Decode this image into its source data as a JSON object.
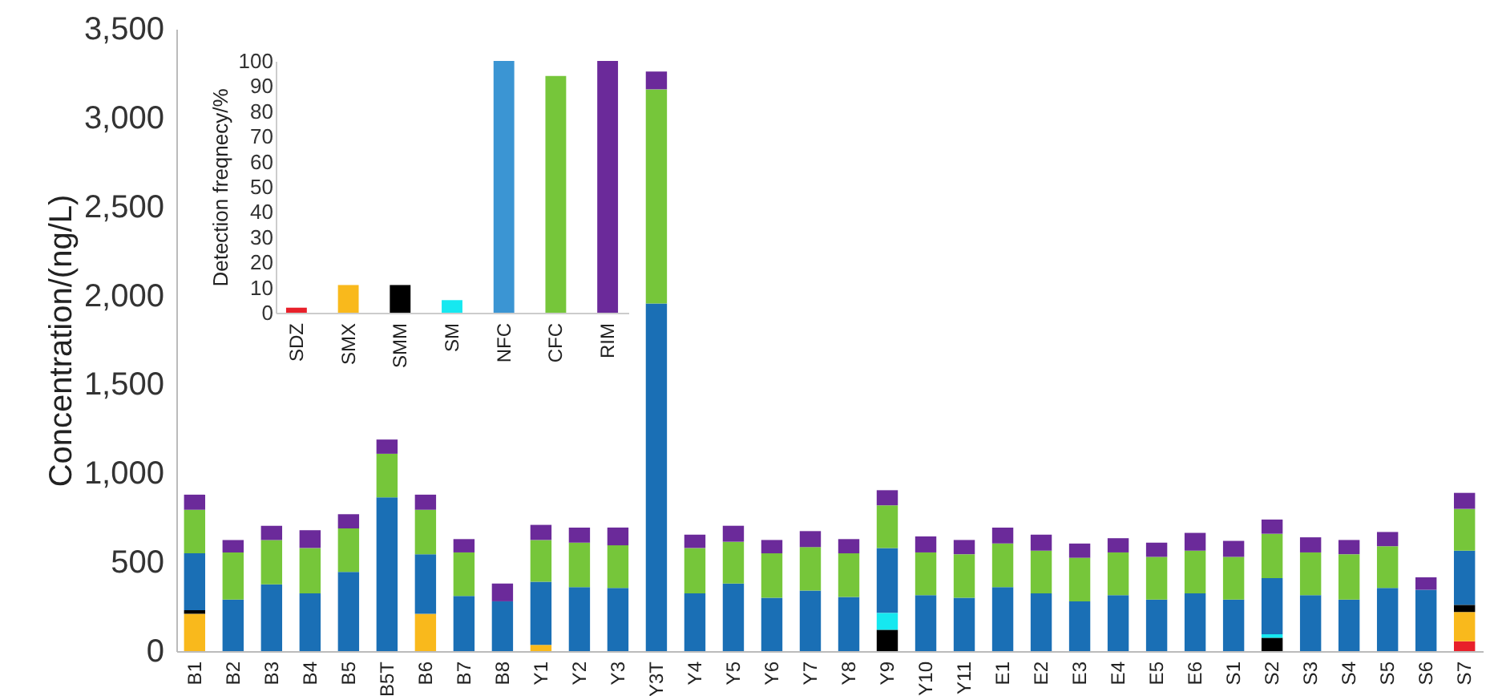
{
  "chart_data": [
    {
      "type": "bar",
      "stacked": true,
      "ylabel": "Concentration/(ng/L)",
      "grid": false,
      "categories": [
        "B1",
        "B2",
        "B3",
        "B4",
        "B5",
        "B5T",
        "B6",
        "B7",
        "B8",
        "Y1",
        "Y2",
        "Y3",
        "Y3T",
        "Y4",
        "Y5",
        "Y6",
        "Y7",
        "Y8",
        "Y9",
        "Y10",
        "Y11",
        "E1",
        "E2",
        "E3",
        "E4",
        "E5",
        "E6",
        "S1",
        "S2",
        "S3",
        "S4",
        "S5",
        "S6",
        "S7"
      ],
      "ylim": [
        0,
        3500
      ],
      "yticks": [
        0,
        500,
        {
          "value": 1000,
          "label": "1,000"
        },
        {
          "value": 1500,
          "label": "1,500"
        },
        {
          "value": 2000,
          "label": "2,000"
        },
        {
          "value": 2500,
          "label": "2,500"
        },
        {
          "value": 3000,
          "label": "3,000"
        },
        {
          "value": 3500,
          "label": "3,500"
        }
      ],
      "series": [
        {
          "color": "#e8202a",
          "values": [
            0,
            0,
            0,
            0,
            0,
            0,
            0,
            0,
            0,
            0,
            0,
            0,
            0,
            0,
            0,
            0,
            0,
            0,
            0,
            0,
            0,
            0,
            0,
            0,
            0,
            0,
            0,
            0,
            0,
            0,
            0,
            0,
            0,
            55
          ]
        },
        {
          "color": "#f9b91c",
          "values": [
            210,
            0,
            0,
            0,
            0,
            0,
            210,
            0,
            0,
            35,
            0,
            0,
            0,
            0,
            0,
            0,
            0,
            0,
            0,
            0,
            0,
            0,
            0,
            0,
            0,
            0,
            0,
            0,
            0,
            0,
            0,
            0,
            0,
            165
          ]
        },
        {
          "color": "#000000",
          "values": [
            20,
            0,
            0,
            0,
            0,
            0,
            0,
            0,
            0,
            0,
            0,
            0,
            0,
            0,
            0,
            0,
            0,
            0,
            120,
            0,
            0,
            0,
            0,
            0,
            0,
            0,
            0,
            0,
            75,
            0,
            0,
            0,
            0,
            40
          ]
        },
        {
          "color": "#16e8f0",
          "values": [
            0,
            0,
            0,
            0,
            0,
            0,
            0,
            0,
            0,
            0,
            0,
            0,
            0,
            0,
            0,
            0,
            0,
            0,
            95,
            0,
            0,
            0,
            0,
            0,
            0,
            0,
            0,
            0,
            20,
            0,
            0,
            0,
            0,
            0
          ]
        },
        {
          "color": "#1a6fb5",
          "values": [
            320,
            290,
            375,
            325,
            445,
            865,
            335,
            310,
            280,
            355,
            360,
            355,
            1955,
            325,
            380,
            300,
            340,
            305,
            365,
            315,
            300,
            360,
            325,
            280,
            315,
            290,
            325,
            290,
            315,
            315,
            290,
            355,
            345,
            305
          ]
        },
        {
          "color": "#76c63a",
          "values": [
            245,
            265,
            250,
            255,
            245,
            245,
            250,
            245,
            0,
            235,
            250,
            240,
            1205,
            255,
            235,
            250,
            245,
            245,
            240,
            240,
            245,
            245,
            240,
            245,
            240,
            240,
            240,
            240,
            250,
            240,
            255,
            235,
            0,
            235
          ]
        },
        {
          "color": "#6b2a9a",
          "values": [
            85,
            70,
            80,
            100,
            80,
            80,
            85,
            75,
            100,
            85,
            85,
            100,
            100,
            75,
            90,
            75,
            90,
            80,
            85,
            90,
            80,
            90,
            90,
            80,
            80,
            80,
            100,
            90,
            80,
            85,
            80,
            80,
            70,
            90
          ]
        }
      ]
    },
    {
      "type": "bar",
      "ylabel": "Detection freqnecy/%",
      "grid": false,
      "categories": [
        "SDZ",
        "SMX",
        "SMM",
        "SM",
        "NFC",
        "CFC",
        "RIM"
      ],
      "values": [
        2,
        11,
        11,
        5,
        100,
        94,
        100
      ],
      "colors": [
        "#e8202a",
        "#f9b91c",
        "#000000",
        "#16e8f0",
        "#3b95d3",
        "#76c63a",
        "#6b2a9a"
      ],
      "ylim": [
        0,
        100
      ],
      "yticks": [
        0,
        10,
        20,
        30,
        40,
        50,
        60,
        70,
        80,
        90,
        100
      ]
    }
  ]
}
